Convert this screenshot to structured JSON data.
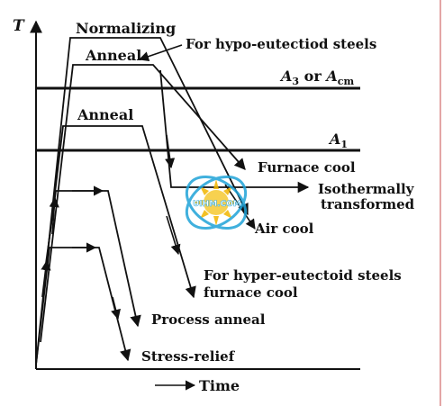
{
  "diagram": {
    "axis_y_label": "T",
    "axis_x_label": "Time",
    "line_a3": {
      "base": "A",
      "sub": "3",
      "mid": " or ",
      "base2": "A",
      "sub2": "cm"
    },
    "line_a1": {
      "base": "A",
      "sub": "1"
    },
    "labels": {
      "normalizing": "Normalizing",
      "anneal_top": "Anneal",
      "hypo": "For hypo-eutectiod steels",
      "anneal_mid": "Anneal",
      "furnace_cool": "Furnace cool",
      "isothermal_1": "Isothermally",
      "isothermal_2": "transformed",
      "air_cool": "Air cool",
      "hyper_1": "For hyper-eutectoid steels",
      "hyper_2": "furnace cool",
      "process_anneal": "Process anneal",
      "stress_relief": "Stress-relief"
    },
    "watermark": {
      "text": "UIHM.COM",
      "color": "#1fa3d8",
      "sun_color": "#f2b600"
    },
    "line_color": "#111111",
    "frame_right_color": "#e3a6a6"
  }
}
